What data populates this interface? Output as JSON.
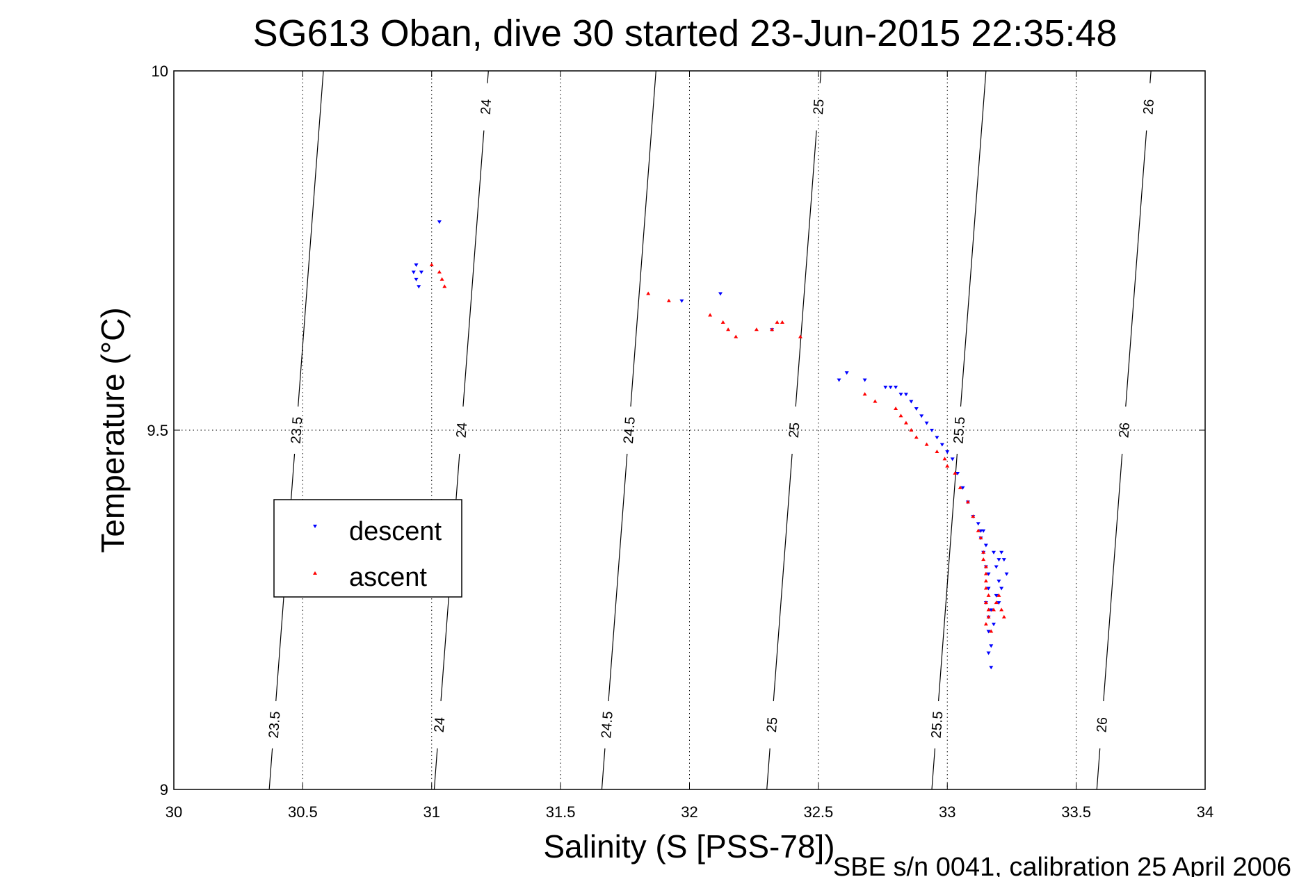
{
  "chart_data": {
    "type": "scatter",
    "title": "SG613 Oban, dive 30 started 23-Jun-2015 22:35:48",
    "xlabel": "Salinity (S [PSS-78])",
    "ylabel": "Temperature (°C)",
    "footer": "SBE s/n 0041, calibration 25 April 2006",
    "xlim": [
      30,
      34
    ],
    "ylim": [
      9,
      10
    ],
    "x_ticks": [
      "30",
      "30.5",
      "31",
      "31.5",
      "32",
      "32.5",
      "33",
      "33.5",
      "34"
    ],
    "y_ticks": [
      "9",
      "9.5",
      "10"
    ],
    "grid": true,
    "legend": {
      "position": "left",
      "entries": [
        "descent",
        "ascent"
      ]
    },
    "colors": {
      "descent": "#0000ff",
      "ascent": "#ff0000",
      "isopycnal": "#000000"
    },
    "isopycnals": [
      {
        "label": "23.5",
        "x_at_9": 30.37,
        "x_at_10": 30.58,
        "labels_at_T": [
          9.5,
          9.09
        ]
      },
      {
        "label": "24",
        "x_at_9": 31.01,
        "x_at_10": 31.22,
        "labels_at_T": [
          9.95,
          9.5,
          9.09
        ]
      },
      {
        "label": "24.5",
        "x_at_9": 31.66,
        "x_at_10": 31.87,
        "labels_at_T": [
          9.5,
          9.09
        ]
      },
      {
        "label": "25",
        "x_at_9": 32.3,
        "x_at_10": 32.51,
        "labels_at_T": [
          9.95,
          9.5,
          9.09
        ]
      },
      {
        "label": "25.5",
        "x_at_9": 32.94,
        "x_at_10": 33.15,
        "labels_at_T": [
          9.5,
          9.09
        ]
      },
      {
        "label": "26",
        "x_at_9": 33.58,
        "x_at_10": 33.79,
        "labels_at_T": [
          9.95,
          9.5,
          9.09
        ]
      }
    ],
    "series": [
      {
        "name": "descent",
        "marker": "triangle-down",
        "points": [
          [
            31.03,
            9.79
          ],
          [
            30.93,
            9.72
          ],
          [
            30.94,
            9.71
          ],
          [
            30.95,
            9.7
          ],
          [
            30.94,
            9.73
          ],
          [
            30.96,
            9.72
          ],
          [
            32.12,
            9.69
          ],
          [
            31.97,
            9.68
          ],
          [
            32.32,
            9.64
          ],
          [
            32.58,
            9.57
          ],
          [
            32.61,
            9.58
          ],
          [
            32.68,
            9.57
          ],
          [
            32.76,
            9.56
          ],
          [
            32.78,
            9.56
          ],
          [
            32.8,
            9.56
          ],
          [
            32.82,
            9.55
          ],
          [
            32.84,
            9.55
          ],
          [
            32.86,
            9.54
          ],
          [
            32.88,
            9.53
          ],
          [
            32.9,
            9.52
          ],
          [
            32.92,
            9.51
          ],
          [
            32.94,
            9.5
          ],
          [
            32.96,
            9.49
          ],
          [
            32.98,
            9.48
          ],
          [
            33.0,
            9.47
          ],
          [
            33.02,
            9.46
          ],
          [
            33.04,
            9.44
          ],
          [
            33.06,
            9.42
          ],
          [
            33.08,
            9.4
          ],
          [
            33.1,
            9.38
          ],
          [
            33.12,
            9.37
          ],
          [
            33.13,
            9.36
          ],
          [
            33.13,
            9.35
          ],
          [
            33.14,
            9.36
          ],
          [
            33.15,
            9.34
          ],
          [
            33.14,
            9.33
          ],
          [
            33.15,
            9.31
          ],
          [
            33.16,
            9.3
          ],
          [
            33.16,
            9.28
          ],
          [
            33.15,
            9.26
          ],
          [
            33.17,
            9.25
          ],
          [
            33.16,
            9.24
          ],
          [
            33.18,
            9.23
          ],
          [
            33.16,
            9.22
          ],
          [
            33.17,
            9.2
          ],
          [
            33.16,
            9.19
          ],
          [
            33.17,
            9.17
          ],
          [
            33.2,
            9.32
          ],
          [
            33.21,
            9.33
          ],
          [
            33.22,
            9.32
          ],
          [
            33.19,
            9.31
          ],
          [
            33.23,
            9.3
          ],
          [
            33.2,
            9.29
          ],
          [
            33.21,
            9.28
          ],
          [
            33.18,
            9.33
          ],
          [
            33.19,
            9.27
          ],
          [
            33.2,
            9.26
          ]
        ]
      },
      {
        "name": "ascent",
        "marker": "triangle-up",
        "points": [
          [
            31.0,
            9.73
          ],
          [
            31.03,
            9.72
          ],
          [
            31.04,
            9.71
          ],
          [
            31.05,
            9.7
          ],
          [
            31.84,
            9.69
          ],
          [
            31.92,
            9.68
          ],
          [
            32.08,
            9.66
          ],
          [
            32.13,
            9.65
          ],
          [
            32.15,
            9.64
          ],
          [
            32.18,
            9.63
          ],
          [
            32.26,
            9.64
          ],
          [
            32.32,
            9.64
          ],
          [
            32.34,
            9.65
          ],
          [
            32.36,
            9.65
          ],
          [
            32.43,
            9.63
          ],
          [
            32.68,
            9.55
          ],
          [
            32.72,
            9.54
          ],
          [
            32.8,
            9.53
          ],
          [
            32.82,
            9.52
          ],
          [
            32.84,
            9.51
          ],
          [
            32.86,
            9.5
          ],
          [
            32.88,
            9.49
          ],
          [
            32.92,
            9.48
          ],
          [
            32.96,
            9.47
          ],
          [
            32.99,
            9.46
          ],
          [
            33.0,
            9.45
          ],
          [
            33.03,
            9.44
          ],
          [
            33.05,
            9.42
          ],
          [
            33.08,
            9.4
          ],
          [
            33.1,
            9.38
          ],
          [
            33.12,
            9.36
          ],
          [
            33.13,
            9.35
          ],
          [
            33.14,
            9.33
          ],
          [
            33.14,
            9.32
          ],
          [
            33.15,
            9.31
          ],
          [
            33.15,
            9.3
          ],
          [
            33.15,
            9.29
          ],
          [
            33.15,
            9.28
          ],
          [
            33.16,
            9.27
          ],
          [
            33.15,
            9.26
          ],
          [
            33.16,
            9.25
          ],
          [
            33.16,
            9.24
          ],
          [
            33.15,
            9.23
          ],
          [
            33.17,
            9.22
          ],
          [
            33.18,
            9.25
          ],
          [
            33.19,
            9.26
          ],
          [
            33.21,
            9.25
          ],
          [
            33.22,
            9.24
          ],
          [
            33.2,
            9.27
          ]
        ]
      }
    ]
  }
}
